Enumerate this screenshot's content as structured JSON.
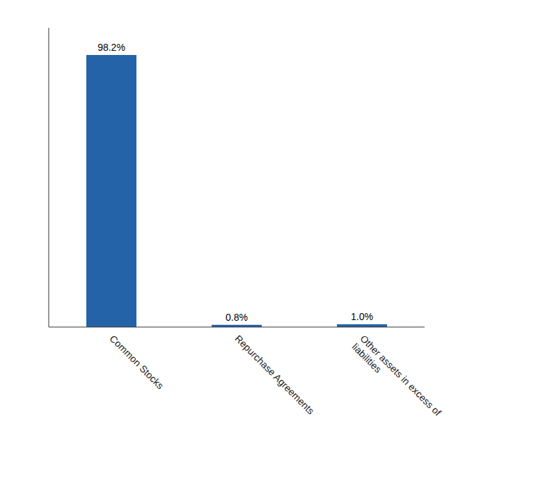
{
  "chart_data": {
    "type": "bar",
    "categories": [
      "Common Stocks",
      "Repurchase Agreements",
      "Other assets in excess of\nliabilities"
    ],
    "values": [
      98.2,
      0.8,
      1.0
    ],
    "value_labels": [
      "98.2%",
      "0.8%",
      "1.0%"
    ],
    "color": "#2563a8",
    "ylim": [
      0,
      108
    ],
    "data_labels": true,
    "tick_labels": "x",
    "grid": false
  }
}
